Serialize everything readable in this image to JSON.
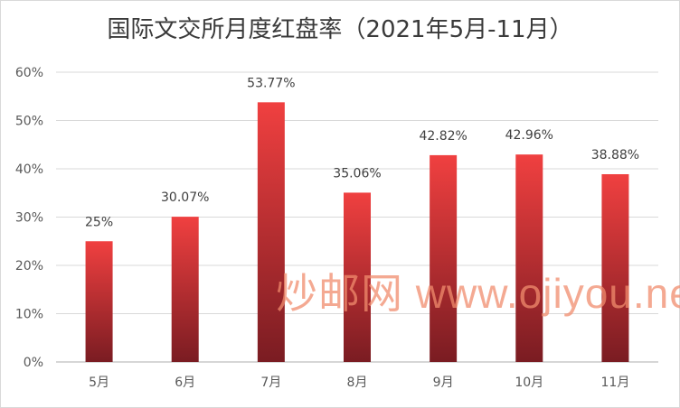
{
  "chart_data": {
    "type": "bar",
    "title": "国际文交所月度红盘率（2021年5月-11月）",
    "categories": [
      "5月",
      "6月",
      "7月",
      "8月",
      "9月",
      "10月",
      "11月"
    ],
    "values": [
      25,
      30.07,
      53.77,
      35.06,
      42.82,
      42.96,
      38.88
    ],
    "data_labels": [
      "25%",
      "30.07%",
      "53.77%",
      "35.06%",
      "42.82%",
      "42.96%",
      "38.88%"
    ],
    "ylim": [
      0,
      60
    ],
    "yticks": [
      "0%",
      "10%",
      "20%",
      "30%",
      "40%",
      "50%",
      "60%"
    ],
    "grid": true,
    "legend": "none",
    "bar_color_top": "#f04040",
    "bar_color_bottom": "#7a1c22"
  },
  "watermark": "炒邮网 www.ojiyou.net"
}
